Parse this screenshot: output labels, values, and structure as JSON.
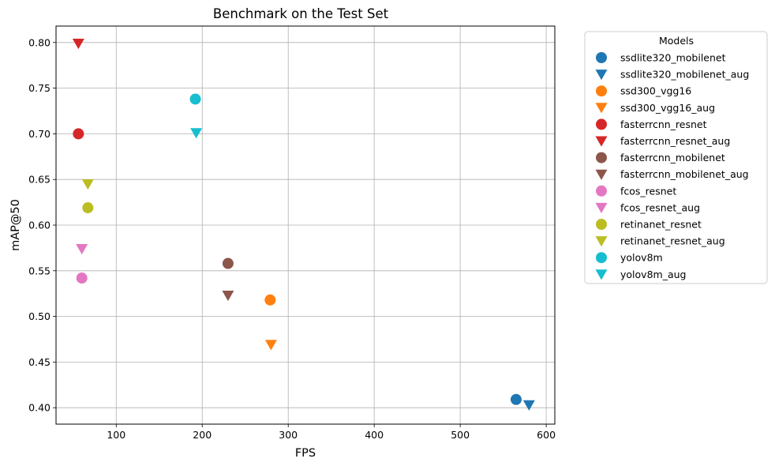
{
  "chart_data": {
    "type": "scatter",
    "title": "Benchmark on the Test Set",
    "xlabel": "FPS",
    "ylabel": "mAP@50",
    "xlim": [
      30,
      610
    ],
    "ylim": [
      0.382,
      0.818
    ],
    "xticks": [
      100,
      200,
      300,
      400,
      500,
      600
    ],
    "yticks": [
      0.4,
      0.45,
      0.5,
      0.55,
      0.6,
      0.65,
      0.7,
      0.75,
      0.8
    ],
    "grid": true,
    "legend": {
      "title": "Models",
      "placement": "outside-right"
    },
    "series": [
      {
        "name": "ssdlite320_mobilenet",
        "marker": "circle",
        "color": "#1f77b4",
        "points": [
          [
            565,
            0.409
          ]
        ]
      },
      {
        "name": "ssdlite320_mobilenet_aug",
        "marker": "triangle-down",
        "color": "#1f77b4",
        "points": [
          [
            580,
            0.403
          ]
        ]
      },
      {
        "name": "ssd300_vgg16",
        "marker": "circle",
        "color": "#ff7f0e",
        "points": [
          [
            279,
            0.518
          ]
        ]
      },
      {
        "name": "ssd300_vgg16_aug",
        "marker": "triangle-down",
        "color": "#ff7f0e",
        "points": [
          [
            280,
            0.469
          ]
        ]
      },
      {
        "name": "fasterrcnn_resnet",
        "marker": "circle",
        "color": "#d62728",
        "points": [
          [
            56,
            0.7
          ]
        ]
      },
      {
        "name": "fasterrcnn_resnet_aug",
        "marker": "triangle-down",
        "color": "#d62728",
        "points": [
          [
            56,
            0.799
          ]
        ]
      },
      {
        "name": "fasterrcnn_mobilenet",
        "marker": "circle",
        "color": "#8c564b",
        "points": [
          [
            230,
            0.558
          ]
        ]
      },
      {
        "name": "fasterrcnn_mobilenet_aug",
        "marker": "triangle-down",
        "color": "#8c564b",
        "points": [
          [
            230,
            0.523
          ]
        ]
      },
      {
        "name": "fcos_resnet",
        "marker": "circle",
        "color": "#e377c2",
        "points": [
          [
            60,
            0.542
          ]
        ]
      },
      {
        "name": "fcos_resnet_aug",
        "marker": "triangle-down",
        "color": "#e377c2",
        "points": [
          [
            60,
            0.574
          ]
        ]
      },
      {
        "name": "retinanet_resnet",
        "marker": "circle",
        "color": "#bcbd22",
        "points": [
          [
            67,
            0.619
          ]
        ]
      },
      {
        "name": "retinanet_resnet_aug",
        "marker": "triangle-down",
        "color": "#bcbd22",
        "points": [
          [
            67,
            0.645
          ]
        ]
      },
      {
        "name": "yolov8m",
        "marker": "circle",
        "color": "#17becf",
        "points": [
          [
            192,
            0.738
          ]
        ]
      },
      {
        "name": "yolov8m_aug",
        "marker": "triangle-down",
        "color": "#17becf",
        "points": [
          [
            193,
            0.701
          ]
        ]
      }
    ]
  }
}
